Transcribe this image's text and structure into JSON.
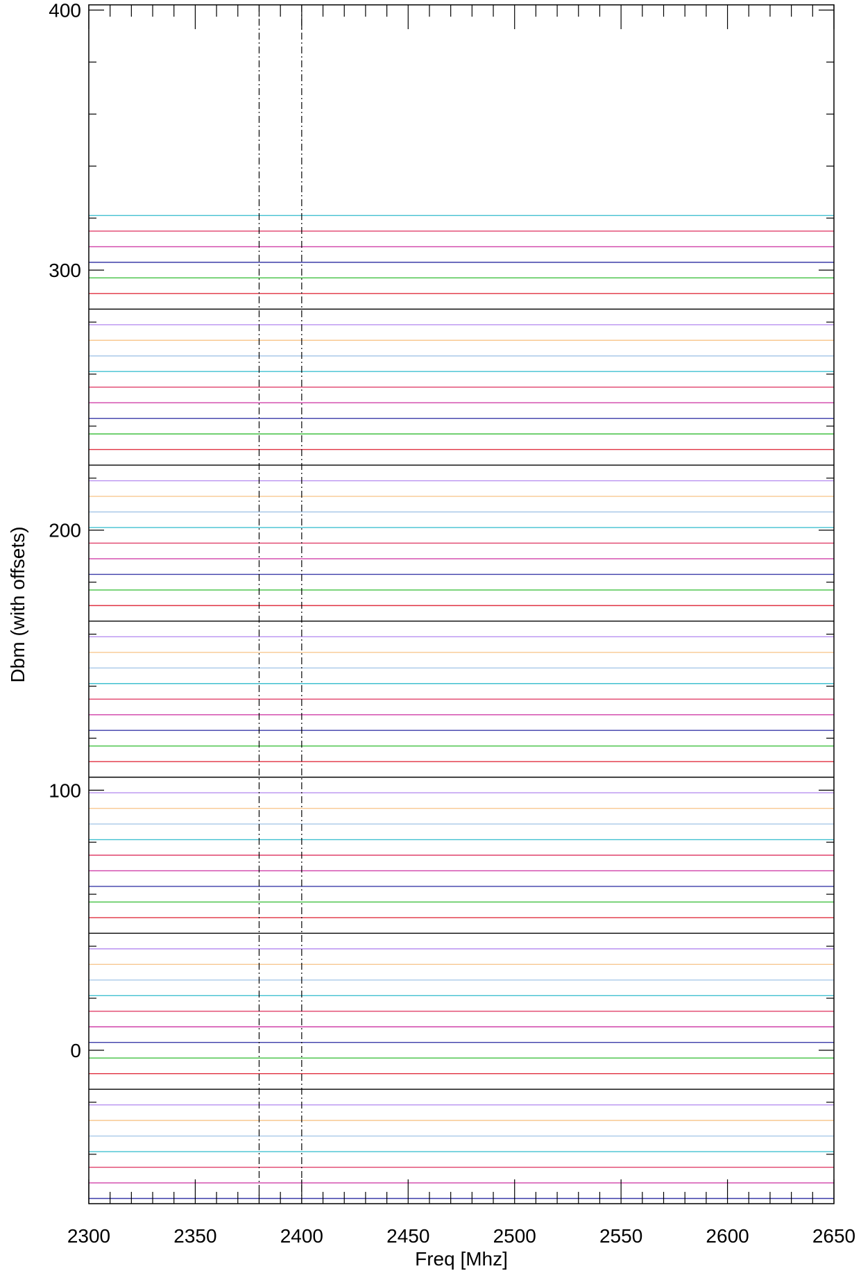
{
  "chart_data": {
    "type": "line",
    "title": "",
    "xlabel": "Freq [Mhz]",
    "ylabel": "Dbm (with offsets)",
    "xlim": [
      2300,
      2650
    ],
    "ylim": [
      -59,
      402
    ],
    "x_ticks": [
      2300,
      2350,
      2400,
      2450,
      2500,
      2550,
      2600,
      2650
    ],
    "y_ticks": [
      0,
      100,
      200,
      300,
      400
    ],
    "grid": false,
    "legend": "none",
    "vlines": [
      2380,
      2400
    ],
    "series": [
      {
        "color": "#3a3aa8",
        "values": [
          -57,
          -57
        ]
      },
      {
        "color": "#d040a8",
        "values": [
          -51,
          -51
        ]
      },
      {
        "color": "#e0406a",
        "values": [
          -45,
          -45
        ]
      },
      {
        "color": "#40c0d0",
        "values": [
          -39,
          -39
        ]
      },
      {
        "color": "#a8c8e8",
        "values": [
          -33,
          -33
        ]
      },
      {
        "color": "#f8c890",
        "values": [
          -27,
          -27
        ]
      },
      {
        "color": "#b890f0",
        "values": [
          -21,
          -21
        ]
      },
      {
        "color": "#000000",
        "values": [
          -15,
          -15
        ]
      },
      {
        "color": "#e03040",
        "values": [
          -9,
          -9
        ]
      },
      {
        "color": "#40c040",
        "values": [
          -3,
          -3
        ]
      },
      {
        "color": "#3a3aa8",
        "values": [
          3,
          3
        ]
      },
      {
        "color": "#d040a8",
        "values": [
          9,
          9
        ]
      },
      {
        "color": "#e0406a",
        "values": [
          15,
          15
        ]
      },
      {
        "color": "#40c0d0",
        "values": [
          21,
          21
        ]
      },
      {
        "color": "#a8c8e8",
        "values": [
          27,
          27
        ]
      },
      {
        "color": "#f8c890",
        "values": [
          33,
          33
        ]
      },
      {
        "color": "#b890f0",
        "values": [
          39,
          39
        ]
      },
      {
        "color": "#000000",
        "values": [
          45,
          45
        ]
      },
      {
        "color": "#e03040",
        "values": [
          51,
          51
        ]
      },
      {
        "color": "#40c040",
        "values": [
          57,
          57
        ]
      },
      {
        "color": "#3a3aa8",
        "values": [
          63,
          63
        ]
      },
      {
        "color": "#d040a8",
        "values": [
          69,
          69
        ]
      },
      {
        "color": "#e0406a",
        "values": [
          75,
          75
        ]
      },
      {
        "color": "#40c0d0",
        "values": [
          81,
          81
        ]
      },
      {
        "color": "#a8c8e8",
        "values": [
          87,
          87
        ]
      },
      {
        "color": "#f8c890",
        "values": [
          93,
          93
        ]
      },
      {
        "color": "#b890f0",
        "values": [
          99,
          99
        ]
      },
      {
        "color": "#000000",
        "values": [
          105,
          105
        ]
      },
      {
        "color": "#e03040",
        "values": [
          111,
          111
        ]
      },
      {
        "color": "#40c040",
        "values": [
          117,
          117
        ]
      },
      {
        "color": "#3a3aa8",
        "values": [
          123,
          123
        ]
      },
      {
        "color": "#d040a8",
        "values": [
          129,
          129
        ]
      },
      {
        "color": "#e0406a",
        "values": [
          135,
          135
        ]
      },
      {
        "color": "#40c0d0",
        "values": [
          141,
          141
        ]
      },
      {
        "color": "#a8c8e8",
        "values": [
          147,
          147
        ]
      },
      {
        "color": "#f8c890",
        "values": [
          153,
          153
        ]
      },
      {
        "color": "#b890f0",
        "values": [
          159,
          159
        ]
      },
      {
        "color": "#000000",
        "values": [
          165,
          165
        ]
      },
      {
        "color": "#e03040",
        "values": [
          171,
          171
        ]
      },
      {
        "color": "#40c040",
        "values": [
          177,
          177
        ]
      },
      {
        "color": "#3a3aa8",
        "values": [
          183,
          183
        ]
      },
      {
        "color": "#d040a8",
        "values": [
          189,
          189
        ]
      },
      {
        "color": "#e0406a",
        "values": [
          195,
          195
        ]
      },
      {
        "color": "#40c0d0",
        "values": [
          201,
          201
        ]
      },
      {
        "color": "#a8c8e8",
        "values": [
          207,
          207
        ]
      },
      {
        "color": "#f8c890",
        "values": [
          213,
          213
        ]
      },
      {
        "color": "#b890f0",
        "values": [
          219,
          219
        ]
      },
      {
        "color": "#000000",
        "values": [
          225,
          225
        ]
      },
      {
        "color": "#e03040",
        "values": [
          231,
          231
        ]
      },
      {
        "color": "#40c040",
        "values": [
          237,
          237
        ]
      },
      {
        "color": "#3a3aa8",
        "values": [
          243,
          243
        ]
      },
      {
        "color": "#d040a8",
        "values": [
          249,
          249
        ]
      },
      {
        "color": "#e0406a",
        "values": [
          255,
          255
        ]
      },
      {
        "color": "#40c0d0",
        "values": [
          261,
          261
        ]
      },
      {
        "color": "#a8c8e8",
        "values": [
          267,
          267
        ]
      },
      {
        "color": "#f8c890",
        "values": [
          273,
          273
        ]
      },
      {
        "color": "#b890f0",
        "values": [
          279,
          279
        ]
      },
      {
        "color": "#000000",
        "values": [
          285,
          285
        ]
      },
      {
        "color": "#e03040",
        "values": [
          291,
          291
        ]
      },
      {
        "color": "#40c040",
        "values": [
          297,
          297
        ]
      },
      {
        "color": "#3a3aa8",
        "values": [
          303,
          303
        ]
      },
      {
        "color": "#d040a8",
        "values": [
          309,
          309
        ]
      },
      {
        "color": "#e0406a",
        "values": [
          315,
          315
        ]
      },
      {
        "color": "#40c0d0",
        "values": [
          321,
          321
        ]
      }
    ],
    "x": [
      2300,
      2650
    ]
  }
}
